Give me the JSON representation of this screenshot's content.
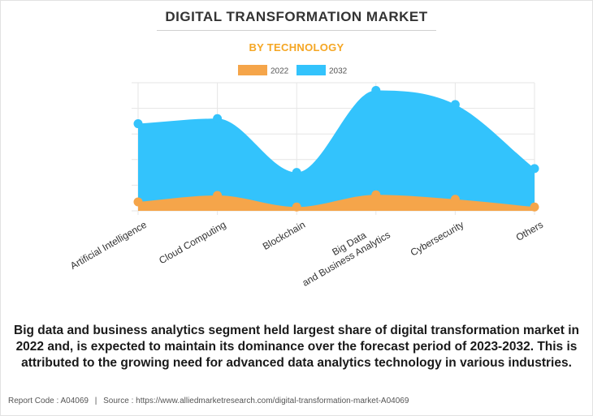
{
  "header": {
    "title": "DIGITAL TRANSFORMATION MARKET",
    "subtitle": "BY TECHNOLOGY"
  },
  "summary": "Big data and business analytics segment held largest share of digital transformation market in 2022 and, is expected to maintain its dominance over the forecast period of 2023-2032. This is attributed to the growing need for advanced data analytics technology in various industries.",
  "footer": {
    "report_code": "Report Code : A04069",
    "separator": "|",
    "source": "Source : https://www.alliedmarketresearch.com/digital-transformation-market-A04069"
  },
  "chart_data": {
    "type": "area",
    "categories": [
      "Artificial Intelligence",
      "Cloud Computing",
      "Blockchain",
      "Big Data\nand Business Analytics",
      "Cybersecurity",
      "Others"
    ],
    "series": [
      {
        "name": "2022",
        "color": "#f5a54a",
        "values": [
          7,
          12,
          3,
          12.5,
          9,
          3
        ]
      },
      {
        "name": "2032",
        "color": "#33c3fc",
        "values": [
          68,
          72,
          30,
          94,
          83,
          33
        ]
      }
    ],
    "ylim": [
      0,
      100
    ],
    "grid": true,
    "legend": "top-center",
    "y_tick_labels_shown": false
  }
}
